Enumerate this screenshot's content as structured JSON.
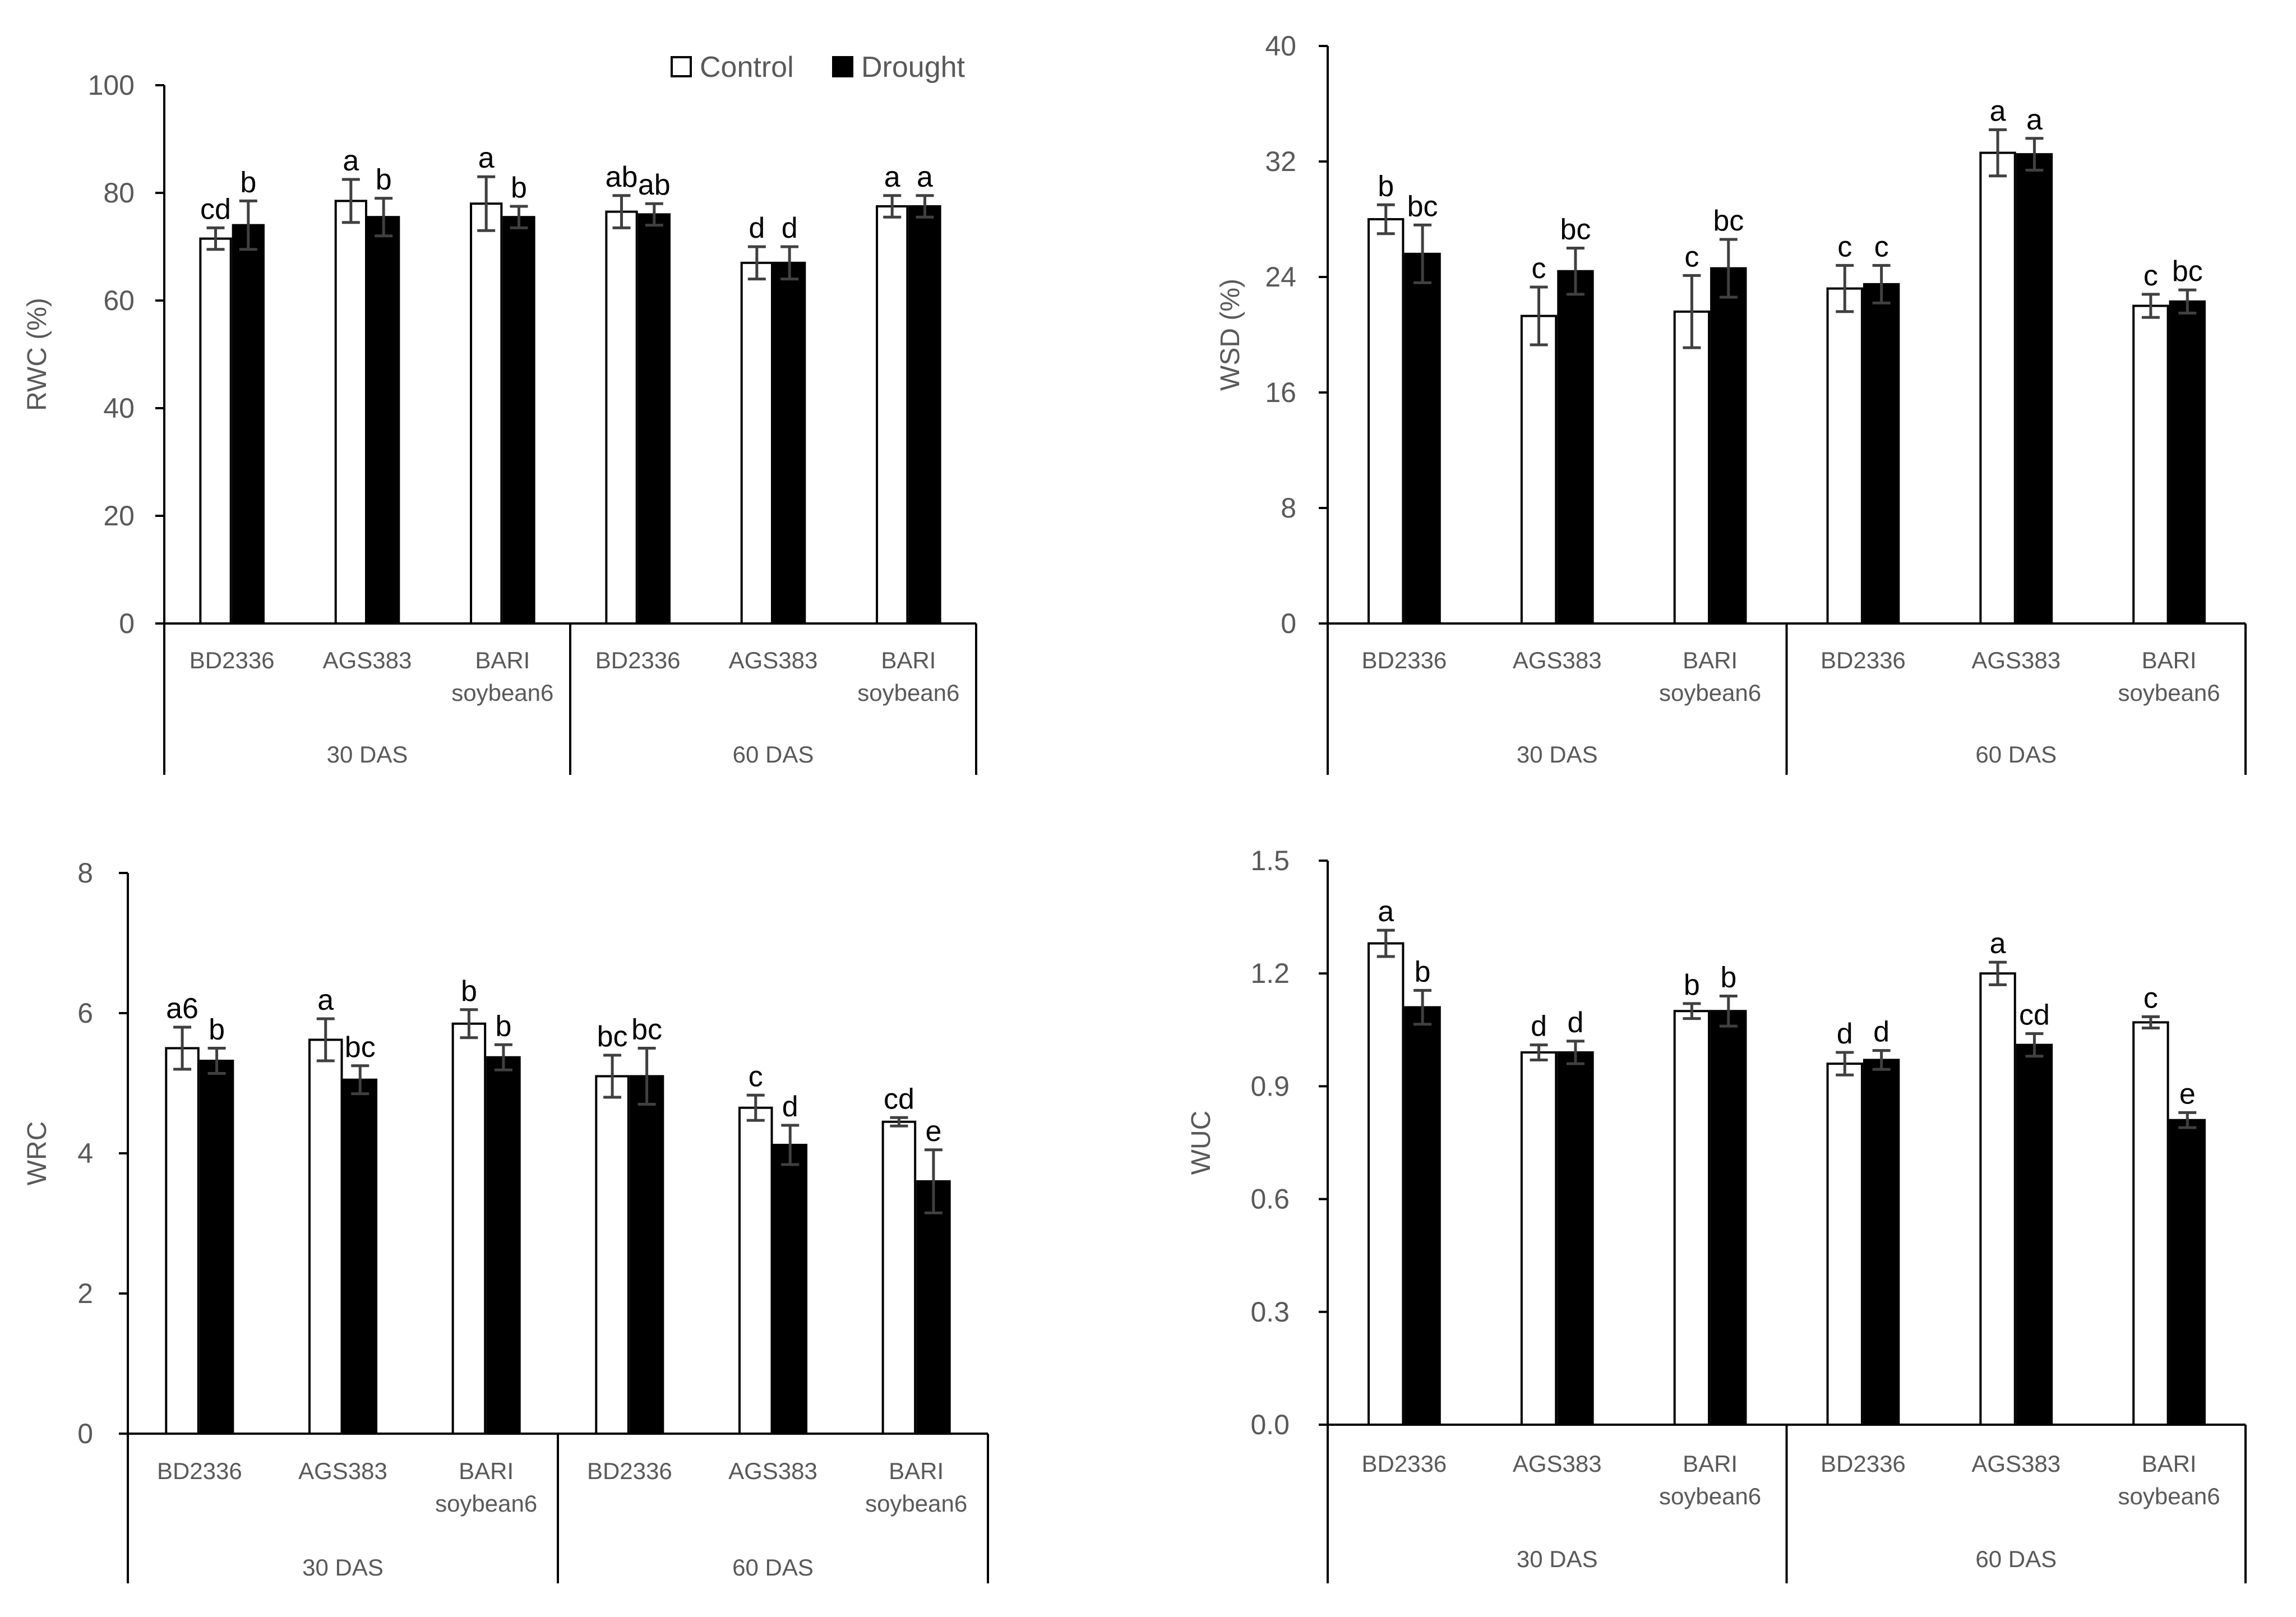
{
  "legend": {
    "control": "Control",
    "drought": "Drought"
  },
  "colors": {
    "control": "#ffffff",
    "drought": "#000000",
    "axis": "#000000",
    "text": "#595959"
  },
  "chart_data": [
    {
      "id": "rwc",
      "type": "bar",
      "ylabel": "RWC (%)",
      "ylim": [
        0,
        100
      ],
      "yticks": [
        "0",
        "20",
        "40",
        "60",
        "80",
        "100"
      ],
      "yticks_values": [
        0,
        20,
        40,
        60,
        80,
        100
      ],
      "categories": [
        "BD2336",
        "AGS383",
        "BARI\nsoybean6",
        "BD2336",
        "AGS383",
        "BARI\nsoybean6"
      ],
      "groups": [
        "30 DAS",
        "60 DAS"
      ],
      "series": [
        {
          "name": "Control",
          "values": [
            71.5,
            78.5,
            78.0,
            76.5,
            67.0,
            77.5
          ],
          "errors": [
            2.0,
            4.0,
            5.0,
            3.0,
            3.0,
            2.0
          ],
          "labels": [
            "cd",
            "a",
            "a",
            "ab",
            "d",
            "a"
          ]
        },
        {
          "name": "Drought",
          "values": [
            74.0,
            75.5,
            75.5,
            76.0,
            67.0,
            77.5
          ],
          "errors": [
            4.5,
            3.5,
            2.0,
            2.0,
            3.0,
            2.0
          ],
          "labels": [
            "b",
            "b",
            "b",
            "ab",
            "d",
            "a"
          ]
        }
      ]
    },
    {
      "id": "wsd",
      "type": "bar",
      "ylabel": "WSD (%)",
      "ylim": [
        0,
        40
      ],
      "yticks": [
        "0",
        "8",
        "16",
        "24",
        "32",
        "40"
      ],
      "yticks_values": [
        0,
        8,
        16,
        24,
        32,
        40
      ],
      "categories": [
        "BD2336",
        "AGS383",
        "BARI\nsoybean6",
        "BD2336",
        "AGS383",
        "BARI\nsoybean6"
      ],
      "groups": [
        "30 DAS",
        "60 DAS"
      ],
      "series": [
        {
          "name": "Control",
          "values": [
            28.0,
            21.3,
            21.6,
            23.2,
            32.6,
            22.0
          ],
          "errors": [
            1.0,
            2.0,
            2.5,
            1.6,
            1.6,
            0.8
          ],
          "labels": [
            "b",
            "c",
            "c",
            "c",
            "a",
            "c"
          ]
        },
        {
          "name": "Drought",
          "values": [
            25.6,
            24.4,
            24.6,
            23.5,
            32.5,
            22.3
          ],
          "errors": [
            2.0,
            1.6,
            2.0,
            1.3,
            1.1,
            0.8
          ],
          "labels": [
            "bc",
            "bc",
            "bc",
            "c",
            "a",
            "bc"
          ]
        }
      ]
    },
    {
      "id": "wrc",
      "type": "bar",
      "ylabel": "WRC",
      "ylim": [
        0,
        8
      ],
      "yticks": [
        "0",
        "2",
        "4",
        "6",
        "8"
      ],
      "yticks_values": [
        0,
        2,
        4,
        6,
        8
      ],
      "categories": [
        "BD2336",
        "AGS383",
        "BARI\nsoybean6",
        "BD2336",
        "AGS383",
        "BARI\nsoybean6"
      ],
      "groups": [
        "30 DAS",
        "60 DAS"
      ],
      "series": [
        {
          "name": "Control",
          "values": [
            5.5,
            5.62,
            5.85,
            5.1,
            4.65,
            4.45
          ],
          "errors": [
            0.3,
            0.3,
            0.2,
            0.3,
            0.18,
            0.06
          ],
          "labels": [
            "a6",
            "a",
            "b",
            "bc",
            "c",
            "cd"
          ]
        },
        {
          "name": "Drought",
          "values": [
            5.32,
            5.05,
            5.37,
            5.1,
            4.12,
            3.6
          ],
          "errors": [
            0.18,
            0.2,
            0.18,
            0.4,
            0.28,
            0.45
          ],
          "labels": [
            "b",
            "bc",
            "b",
            "bc",
            "d",
            "e"
          ]
        }
      ]
    },
    {
      "id": "wuc",
      "type": "bar",
      "ylabel": "WUC",
      "ylim": [
        0,
        1.5
      ],
      "yticks": [
        "0.0",
        "0.3",
        "0.6",
        "0.9",
        "1.2",
        "1.5"
      ],
      "yticks_values": [
        0,
        0.3,
        0.6,
        0.9,
        1.2,
        1.5
      ],
      "categories": [
        "BD2336",
        "AGS383",
        "BARI\nsoybean6",
        "BD2336",
        "AGS383",
        "BARI\nsoybean6"
      ],
      "groups": [
        "30 DAS",
        "60 DAS"
      ],
      "series": [
        {
          "name": "Control",
          "values": [
            1.28,
            0.99,
            1.1,
            0.96,
            1.2,
            1.07
          ],
          "errors": [
            0.035,
            0.02,
            0.02,
            0.03,
            0.03,
            0.015
          ],
          "labels": [
            "a",
            "d",
            "b",
            "d",
            "a",
            "c"
          ]
        },
        {
          "name": "Drought",
          "values": [
            1.11,
            0.99,
            1.1,
            0.97,
            1.01,
            0.81
          ],
          "errors": [
            0.045,
            0.03,
            0.04,
            0.025,
            0.03,
            0.02
          ],
          "labels": [
            "b",
            "d",
            "b",
            "d",
            "cd",
            "e"
          ]
        }
      ]
    }
  ]
}
